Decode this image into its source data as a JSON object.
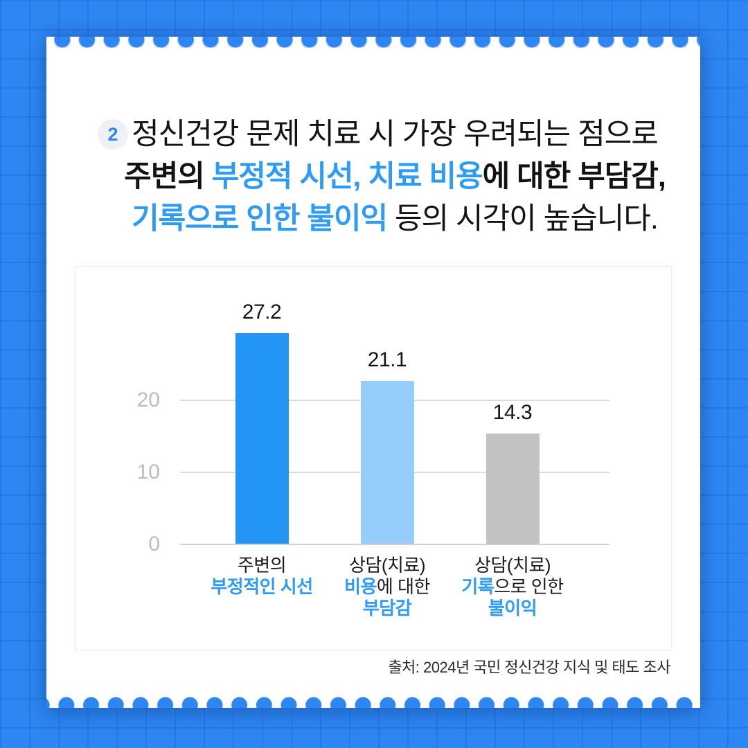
{
  "page": {
    "background_color": "#2E86F2",
    "accent_blue": "#2E9BF5",
    "paper_color": "#FFFFFF"
  },
  "headline": {
    "badge": "2",
    "line1": "정신건강 문제 치료 시 가장 우려되는 점으로",
    "line2": [
      {
        "text": "주변의 ",
        "style": "dark-bold"
      },
      {
        "text": "부정적 시선, 치료 비용",
        "style": "blue-bold"
      },
      {
        "text": "에 대한 부담감,",
        "style": "dark-bold"
      }
    ],
    "line3": [
      {
        "text": "기록으로 인한 불이익",
        "style": "blue-bold"
      },
      {
        "text": " 등의 시각이 높습니다.",
        "style": "dark-regular"
      }
    ]
  },
  "chart_data": {
    "type": "bar",
    "title": "",
    "xlabel": "",
    "ylabel": "",
    "categories": [
      "주변의 부정적인 시선",
      "상담(치료) 비용에 대한 부담감",
      "상담(치료) 기록으로 인한 불이익"
    ],
    "values": [
      27.2,
      21.1,
      14.3
    ],
    "value_labels": [
      "27.2",
      "21.1",
      "14.3"
    ],
    "bar_colors": [
      "#2396F5",
      "#97CDFB",
      "#C2C2C2"
    ],
    "ytick_labels": [
      "20",
      "10",
      "0"
    ],
    "yticks": [
      20,
      10,
      0
    ],
    "ylim": [
      0,
      30
    ],
    "grid": true,
    "legend": false,
    "categories_rich": [
      {
        "l1": [
          {
            "t": "주변의",
            "c": "dark"
          }
        ],
        "l2": [
          {
            "t": "부정적인 시선",
            "c": "blue"
          }
        ],
        "l3": []
      },
      {
        "l1": [
          {
            "t": "상담(치료)",
            "c": "dark"
          }
        ],
        "l2": [
          {
            "t": "비용",
            "c": "blue"
          },
          {
            "t": "에 대한",
            "c": "dark"
          }
        ],
        "l3": [
          {
            "t": "부담감",
            "c": "blue"
          }
        ]
      },
      {
        "l1": [
          {
            "t": "상담(치료)",
            "c": "dark"
          }
        ],
        "l2": [
          {
            "t": "기록",
            "c": "blue"
          },
          {
            "t": "으로 인한",
            "c": "dark"
          }
        ],
        "l3": [
          {
            "t": "불이익",
            "c": "blue"
          }
        ]
      }
    ]
  },
  "source": {
    "text": "출처: 2024년 국민 정신건강 지식 및 태도 조사"
  }
}
